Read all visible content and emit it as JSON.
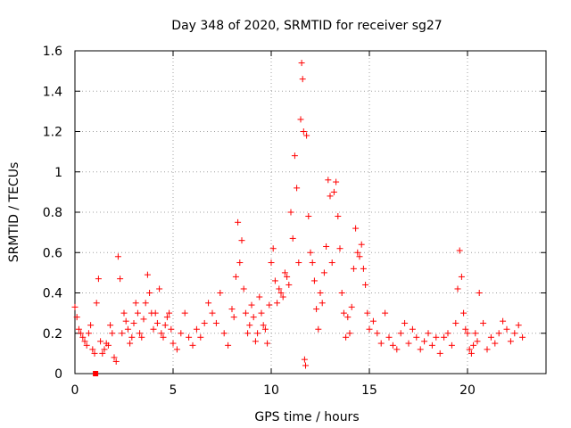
{
  "chart_data": {
    "type": "scatter",
    "title": "Day 348 of 2020, SRMTID for receiver sg27",
    "xlabel": "GPS time / hours",
    "ylabel": "SRMTID / TECUs",
    "xlim": [
      0,
      24
    ],
    "ylim": [
      0,
      1.6
    ],
    "xticks": [
      0,
      5,
      10,
      15,
      20
    ],
    "xtick_labels": [
      "0",
      "5",
      "10",
      "15",
      "20"
    ],
    "yticks": [
      0,
      0.2,
      0.4,
      0.6,
      0.8,
      1.0,
      1.2,
      1.4,
      1.6
    ],
    "ytick_labels": [
      "0",
      "0.2",
      "0.4",
      "0.6",
      "0.8",
      "1",
      "1.2",
      "1.4",
      "1.6"
    ],
    "grid": true,
    "marker": "+",
    "series": [
      {
        "name": "SRMTID",
        "color": "#ff0000",
        "x": [
          0.0,
          0.1,
          0.2,
          0.3,
          0.4,
          0.5,
          0.6,
          0.7,
          0.8,
          0.9,
          1.0,
          1.1,
          1.2,
          1.3,
          1.4,
          1.5,
          1.6,
          1.7,
          1.8,
          1.9,
          2.0,
          2.1,
          2.2,
          2.3,
          2.4,
          2.5,
          2.6,
          2.7,
          2.8,
          2.9,
          3.0,
          3.1,
          3.2,
          3.3,
          3.4,
          3.5,
          3.6,
          3.7,
          3.8,
          3.9,
          4.0,
          4.1,
          4.2,
          4.3,
          4.4,
          4.5,
          4.6,
          4.7,
          4.8,
          4.9,
          5.0,
          5.2,
          5.4,
          5.6,
          5.8,
          6.0,
          6.2,
          6.4,
          6.6,
          6.8,
          7.0,
          7.2,
          7.4,
          7.6,
          7.8,
          8.0,
          8.1,
          8.2,
          8.3,
          8.4,
          8.5,
          8.6,
          8.7,
          8.8,
          8.9,
          9.0,
          9.1,
          9.2,
          9.3,
          9.4,
          9.5,
          9.6,
          9.7,
          9.8,
          9.9,
          10.0,
          10.1,
          10.2,
          10.3,
          10.4,
          10.5,
          10.6,
          10.7,
          10.8,
          10.9,
          11.0,
          11.1,
          11.2,
          11.3,
          11.4,
          11.5,
          11.55,
          11.6,
          11.65,
          11.7,
          11.75,
          11.8,
          11.9,
          12.0,
          12.1,
          12.2,
          12.3,
          12.4,
          12.5,
          12.6,
          12.7,
          12.8,
          12.9,
          13.0,
          13.1,
          13.2,
          13.3,
          13.4,
          13.5,
          13.6,
          13.7,
          13.8,
          13.9,
          14.0,
          14.1,
          14.2,
          14.3,
          14.4,
          14.5,
          14.6,
          14.7,
          14.8,
          14.9,
          15.0,
          15.2,
          15.4,
          15.6,
          15.8,
          16.0,
          16.2,
          16.4,
          16.6,
          16.8,
          17.0,
          17.2,
          17.4,
          17.6,
          17.8,
          18.0,
          18.2,
          18.4,
          18.6,
          18.8,
          19.0,
          19.2,
          19.4,
          19.5,
          19.6,
          19.7,
          19.8,
          19.9,
          20.0,
          20.1,
          20.2,
          20.3,
          20.4,
          20.5,
          20.6,
          20.8,
          21.0,
          21.2,
          21.4,
          21.6,
          21.8,
          22.0,
          22.2,
          22.4,
          22.6,
          22.8
        ],
        "y": [
          0.33,
          0.28,
          0.22,
          0.2,
          0.18,
          0.16,
          0.14,
          0.2,
          0.24,
          0.12,
          0.1,
          0.35,
          0.47,
          0.16,
          0.1,
          0.12,
          0.15,
          0.14,
          0.24,
          0.2,
          0.08,
          0.06,
          0.58,
          0.47,
          0.2,
          0.3,
          0.26,
          0.22,
          0.15,
          0.18,
          0.25,
          0.35,
          0.3,
          0.2,
          0.18,
          0.27,
          0.35,
          0.49,
          0.4,
          0.3,
          0.22,
          0.3,
          0.25,
          0.42,
          0.2,
          0.18,
          0.24,
          0.28,
          0.3,
          0.22,
          0.15,
          0.12,
          0.2,
          0.3,
          0.18,
          0.14,
          0.22,
          0.18,
          0.25,
          0.35,
          0.3,
          0.25,
          0.4,
          0.2,
          0.14,
          0.32,
          0.28,
          0.48,
          0.75,
          0.55,
          0.66,
          0.42,
          0.3,
          0.2,
          0.24,
          0.34,
          0.28,
          0.16,
          0.2,
          0.38,
          0.3,
          0.24,
          0.22,
          0.15,
          0.34,
          0.55,
          0.62,
          0.46,
          0.35,
          0.42,
          0.4,
          0.38,
          0.5,
          0.48,
          0.44,
          0.8,
          0.67,
          1.08,
          0.92,
          0.55,
          1.26,
          1.54,
          1.46,
          1.2,
          0.07,
          0.04,
          1.18,
          0.78,
          0.6,
          0.55,
          0.46,
          0.32,
          0.22,
          0.4,
          0.35,
          0.5,
          0.63,
          0.96,
          0.88,
          0.55,
          0.9,
          0.95,
          0.78,
          0.62,
          0.4,
          0.3,
          0.18,
          0.28,
          0.2,
          0.33,
          0.52,
          0.72,
          0.6,
          0.58,
          0.64,
          0.52,
          0.44,
          0.3,
          0.22,
          0.26,
          0.2,
          0.15,
          0.3,
          0.18,
          0.14,
          0.12,
          0.2,
          0.25,
          0.15,
          0.22,
          0.18,
          0.12,
          0.16,
          0.2,
          0.14,
          0.18,
          0.1,
          0.18,
          0.2,
          0.14,
          0.25,
          0.42,
          0.61,
          0.48,
          0.3,
          0.22,
          0.2,
          0.12,
          0.1,
          0.14,
          0.2,
          0.16,
          0.4,
          0.25,
          0.12,
          0.18,
          0.15,
          0.2,
          0.26,
          0.22,
          0.16,
          0.2,
          0.24,
          0.18
        ]
      }
    ],
    "extra_marker": {
      "x": 1.05,
      "y": 0.0,
      "shape": "square",
      "color": "#ff0000"
    }
  }
}
